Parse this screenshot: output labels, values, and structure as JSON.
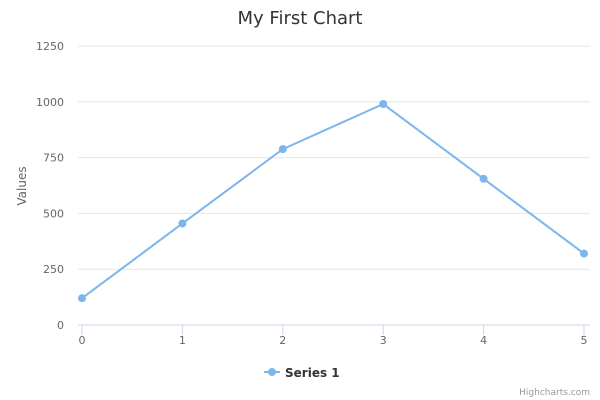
{
  "chart_data": {
    "type": "line",
    "title": "My First Chart",
    "ylabel": "Values",
    "x": [
      0,
      1,
      2,
      3,
      4,
      5
    ],
    "series": [
      {
        "name": "Series 1",
        "values": [
          120,
          455,
          788,
          990,
          655,
          320
        ]
      }
    ],
    "xlim": [
      0,
      5
    ],
    "ylim": [
      0,
      1250
    ],
    "yticks": [
      0,
      250,
      500,
      750,
      1000,
      1250
    ],
    "xticks": [
      0,
      1,
      2,
      3,
      4,
      5
    ],
    "grid": true,
    "legend": "bottom-center",
    "colors": {
      "series": "#7cb5ec",
      "grid": "#e6e6e6",
      "axis": "#ccd6eb"
    }
  },
  "credits": "Highcharts.com"
}
